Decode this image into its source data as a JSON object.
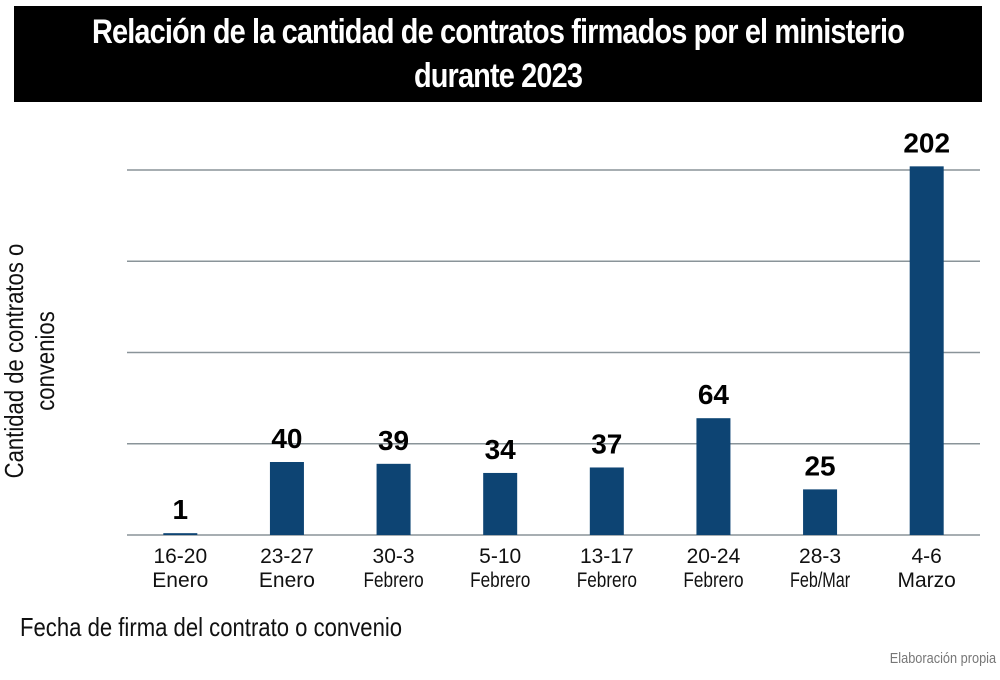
{
  "chart_data": {
    "type": "bar",
    "title": "Relación de la cantidad de contratos firmados por el ministerio durante 2023",
    "xlabel": "Fecha de firma del contrato o convenio",
    "ylabel": "Cantidad de contratos o convenios",
    "categories": [
      [
        "16-20",
        "Enero"
      ],
      [
        "23-27",
        "Enero"
      ],
      [
        "30-3",
        "Febrero"
      ],
      [
        "5-10",
        "Febrero"
      ],
      [
        "13-17",
        "Febrero"
      ],
      [
        "20-24",
        "Febrero"
      ],
      [
        "28-3",
        "Feb/Mar"
      ],
      [
        "4-6",
        "Marzo"
      ]
    ],
    "values": [
      1,
      40,
      39,
      34,
      37,
      64,
      25,
      202
    ],
    "ylim": [
      0,
      200
    ],
    "gridlines": [
      50,
      100,
      150,
      200
    ],
    "grid": true,
    "legend": "none",
    "bar_color": "#0d4473",
    "source": "Elaboración propia"
  }
}
